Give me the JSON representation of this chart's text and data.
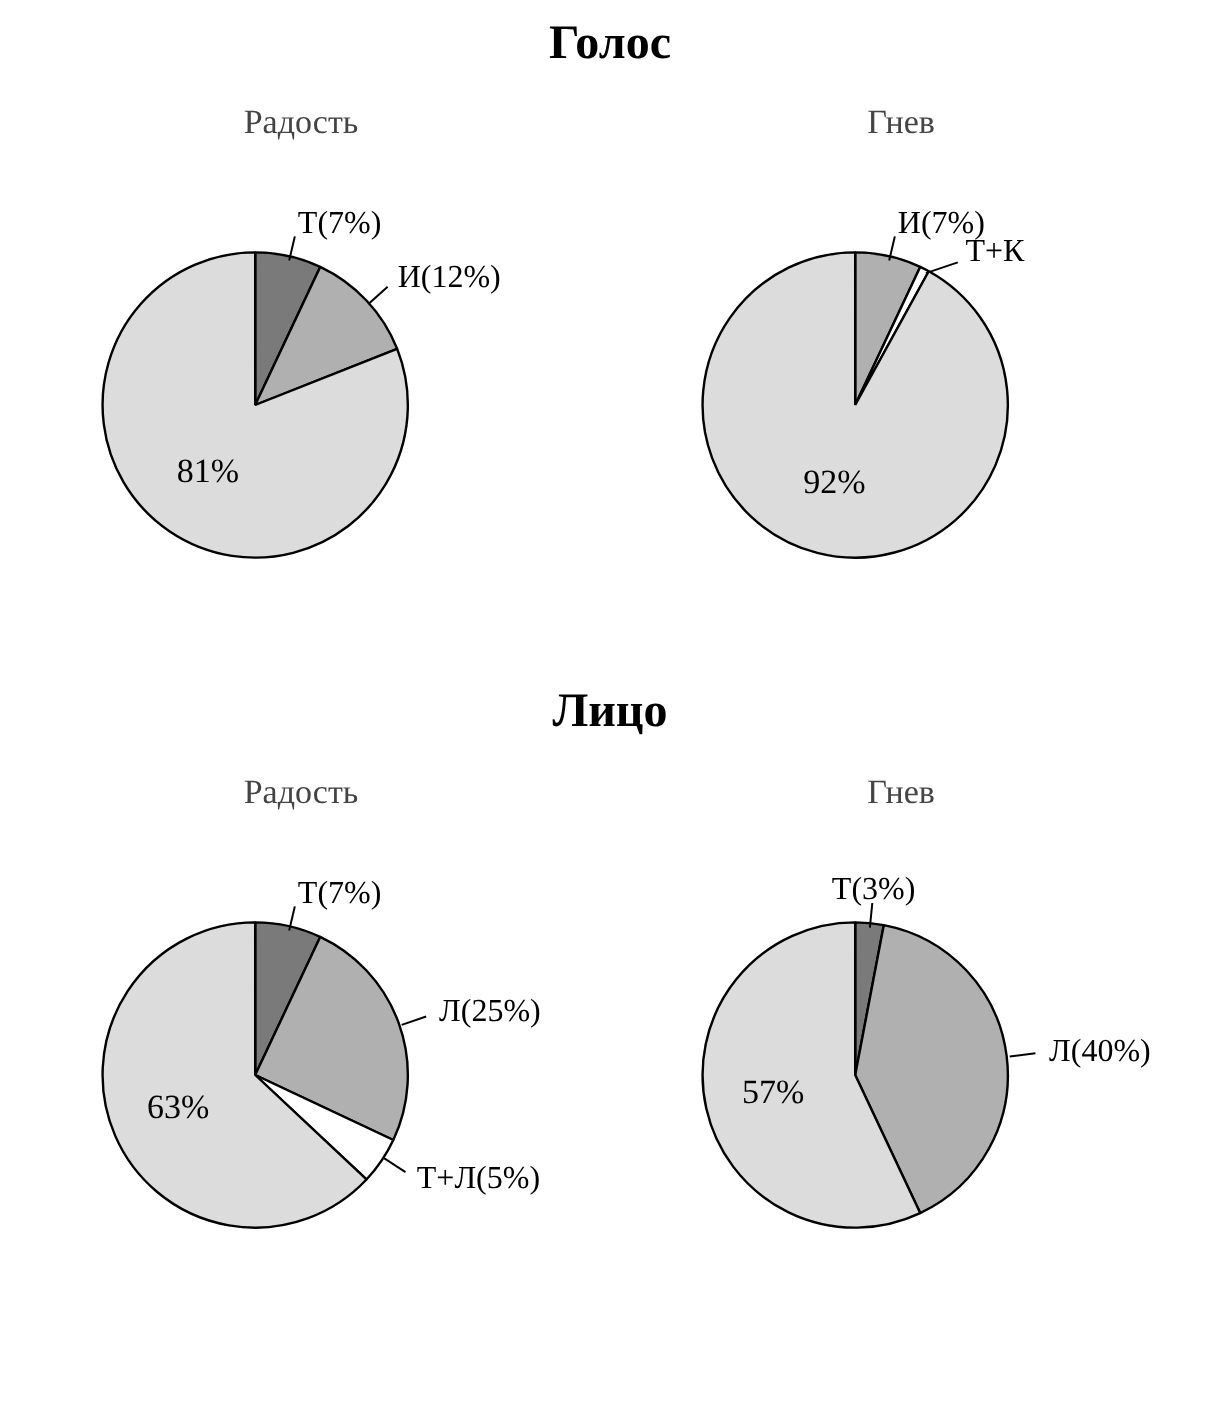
{
  "chart_data": [
    {
      "type": "pie",
      "title": "Голос",
      "subtitle": "Радость",
      "categories": [
        "Т(7%)",
        "И(12%)",
        null
      ],
      "values": [
        7,
        12,
        81
      ],
      "colors": [
        "#7a7a7a",
        "#b0b0b0",
        "#dcdcdc"
      ],
      "value_labels": [
        null,
        null,
        "81%"
      ]
    },
    {
      "type": "pie",
      "subtitle": "Гнев",
      "categories": [
        "И(7%)",
        "Т+К",
        null
      ],
      "values": [
        7,
        1,
        92
      ],
      "colors": [
        "#b0b0b0",
        "#ffffff",
        "#dcdcdc"
      ],
      "value_labels": [
        null,
        null,
        "92%"
      ]
    },
    {
      "type": "pie",
      "title": "Лицо",
      "subtitle": "Радость",
      "categories": [
        "Т(7%)",
        "Л(25%)",
        "Т+Л(5%)",
        null
      ],
      "values": [
        7,
        25,
        5,
        63
      ],
      "colors": [
        "#7a7a7a",
        "#b0b0b0",
        "#ffffff",
        "#dcdcdc"
      ],
      "value_labels": [
        null,
        null,
        null,
        "63%"
      ]
    },
    {
      "type": "pie",
      "subtitle": "Гнев",
      "categories": [
        "Т(3%)",
        "Л(40%)",
        null
      ],
      "values": [
        3,
        40,
        57
      ],
      "colors": [
        "#7a7a7a",
        "#b0b0b0",
        "#dcdcdc"
      ],
      "value_labels": [
        null,
        null,
        "57%"
      ]
    }
  ]
}
